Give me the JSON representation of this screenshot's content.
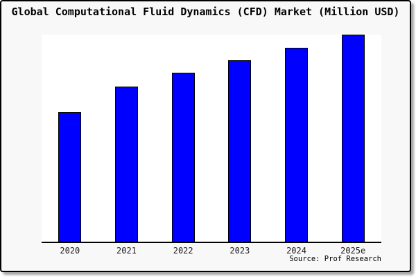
{
  "page": {
    "title": "Global Computational Fluid Dynamics (CFD) Market (Million USD)",
    "source": "Source: Prof Research"
  },
  "colors": {
    "bar_fill": "#0000ff",
    "bar_border": "#000000",
    "plot_background": "#ffffff",
    "page_background": "#f8f8f8",
    "frame_border": "#000000",
    "axis_line": "#000000",
    "label_text": "#1a1a1a"
  },
  "chart_data": {
    "type": "bar",
    "title": "Global Computational Fluid Dynamics (CFD) Market (Million USD)",
    "categories": [
      "2020",
      "2021",
      "2022",
      "2023",
      "2024",
      "2025e"
    ],
    "values": [
      62.5,
      75,
      81.5,
      87.5,
      93.5,
      100
    ],
    "value_scale": "relative index, tallest bar (2025e) = 100; y-axis is unlabeled in the chart",
    "xlabel": "",
    "ylabel": "",
    "ylim": [
      0,
      100
    ],
    "grid": false,
    "y_axis_visible": false,
    "legend_visible": false,
    "source": "Source: Prof Research"
  }
}
